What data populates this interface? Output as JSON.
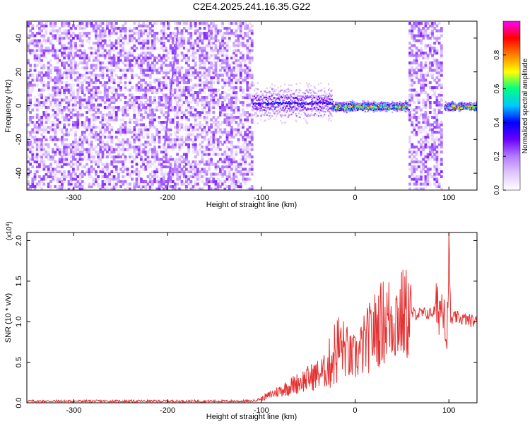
{
  "title": "C2E4.2025.241.16.35.G22",
  "colors": {
    "signal": "#e63030",
    "axis": "#000000",
    "colorbar_stops": [
      "#ffffff",
      "#e0c8ff",
      "#b57bff",
      "#6a00ff",
      "#0000ff",
      "#00c8ff",
      "#00ff80",
      "#ffff00",
      "#ff8000",
      "#ff0000",
      "#ff00ff"
    ]
  },
  "chart_data": [
    {
      "type": "heatmap",
      "name": "spectrogram",
      "xlabel": "Height of straight line (km)",
      "ylabel": "Frequency (Hz)",
      "xlim": [
        -350,
        130
      ],
      "ylim": [
        -50,
        50
      ],
      "xticks": [
        -300,
        -200,
        -100,
        0,
        100
      ],
      "xtick_labels": [
        "-300",
        "-200",
        "-100",
        "0",
        "100"
      ],
      "yticks": [
        -40,
        -20,
        0,
        20,
        40
      ],
      "ytick_labels": [
        "-40",
        "-20",
        "0",
        "20",
        "40"
      ],
      "features": [
        {
          "kind": "noise-band",
          "x_range": [
            -350,
            -110
          ],
          "f_range": [
            -50,
            50
          ],
          "level": 0.15
        },
        {
          "kind": "streak",
          "x_range": [
            -204,
            -190
          ],
          "f_range": [
            -22,
            45
          ],
          "level": 0.2
        },
        {
          "kind": "streak",
          "x_range": [
            -202,
            -198
          ],
          "f_range": [
            -50,
            -36
          ],
          "level": 0.2
        },
        {
          "kind": "tone-line",
          "x_range": [
            -110,
            -25
          ],
          "f_center": 2,
          "f_spread": 8,
          "level": 0.4
        },
        {
          "kind": "tone-line",
          "x_range": [
            -25,
            57
          ],
          "f_center": 0,
          "f_spread": 2,
          "level": 0.9
        },
        {
          "kind": "noise-band",
          "x_range": [
            57,
            93
          ],
          "f_range": [
            -50,
            50
          ],
          "level": 0.15
        },
        {
          "kind": "tone-line",
          "x_range": [
            95,
            130
          ],
          "f_center": 0,
          "f_spread": 1.5,
          "level": 0.95
        }
      ],
      "colorbar": {
        "label": "Normalized spectral amplitude",
        "range": [
          0,
          1
        ],
        "ticks": [
          0.0,
          0.2,
          0.4,
          0.6,
          0.8
        ],
        "tick_labels": [
          "0.0",
          "0.2",
          "0.4",
          "0.6",
          "0.8"
        ]
      }
    },
    {
      "type": "line",
      "name": "snr",
      "xlabel": "Height of straight line (km)",
      "ylabel": "SNR (10 * v/v)",
      "y_multiplier_label": "(x10",
      "y_multiplier_exp": "4",
      "xlim": [
        -350,
        130
      ],
      "ylim": [
        0,
        2.1
      ],
      "xticks": [
        -300,
        -200,
        -100,
        0,
        100
      ],
      "xtick_labels": [
        "-300",
        "-200",
        "-100",
        "0",
        "100"
      ],
      "yticks": [
        0.0,
        0.5,
        1.0,
        1.5,
        2.0
      ],
      "ytick_labels": [
        "0.0",
        "0.5",
        "1.0",
        "1.5",
        "2.0"
      ],
      "series": [
        {
          "name": "SNR",
          "x": [
            -350,
            -300,
            -250,
            -200,
            -150,
            -110,
            -100,
            -90,
            -80,
            -70,
            -60,
            -50,
            -40,
            -30,
            -25,
            -20,
            -15,
            -10,
            -5,
            0,
            5,
            10,
            20,
            30,
            40,
            50,
            60,
            70,
            80,
            88,
            92,
            95,
            98,
            100,
            102,
            105,
            110,
            120,
            130
          ],
          "y": [
            0.02,
            0.02,
            0.02,
            0.02,
            0.02,
            0.02,
            0.05,
            0.1,
            0.15,
            0.2,
            0.25,
            0.3,
            0.35,
            0.4,
            0.55,
            0.65,
            0.7,
            0.65,
            0.55,
            0.55,
            0.62,
            0.72,
            0.88,
            1.0,
            1.05,
            1.08,
            1.1,
            1.1,
            1.1,
            1.15,
            1.2,
            1.3,
            0.7,
            2.05,
            1.0,
            1.05,
            1.05,
            1.02,
            1.0
          ]
        }
      ]
    }
  ]
}
